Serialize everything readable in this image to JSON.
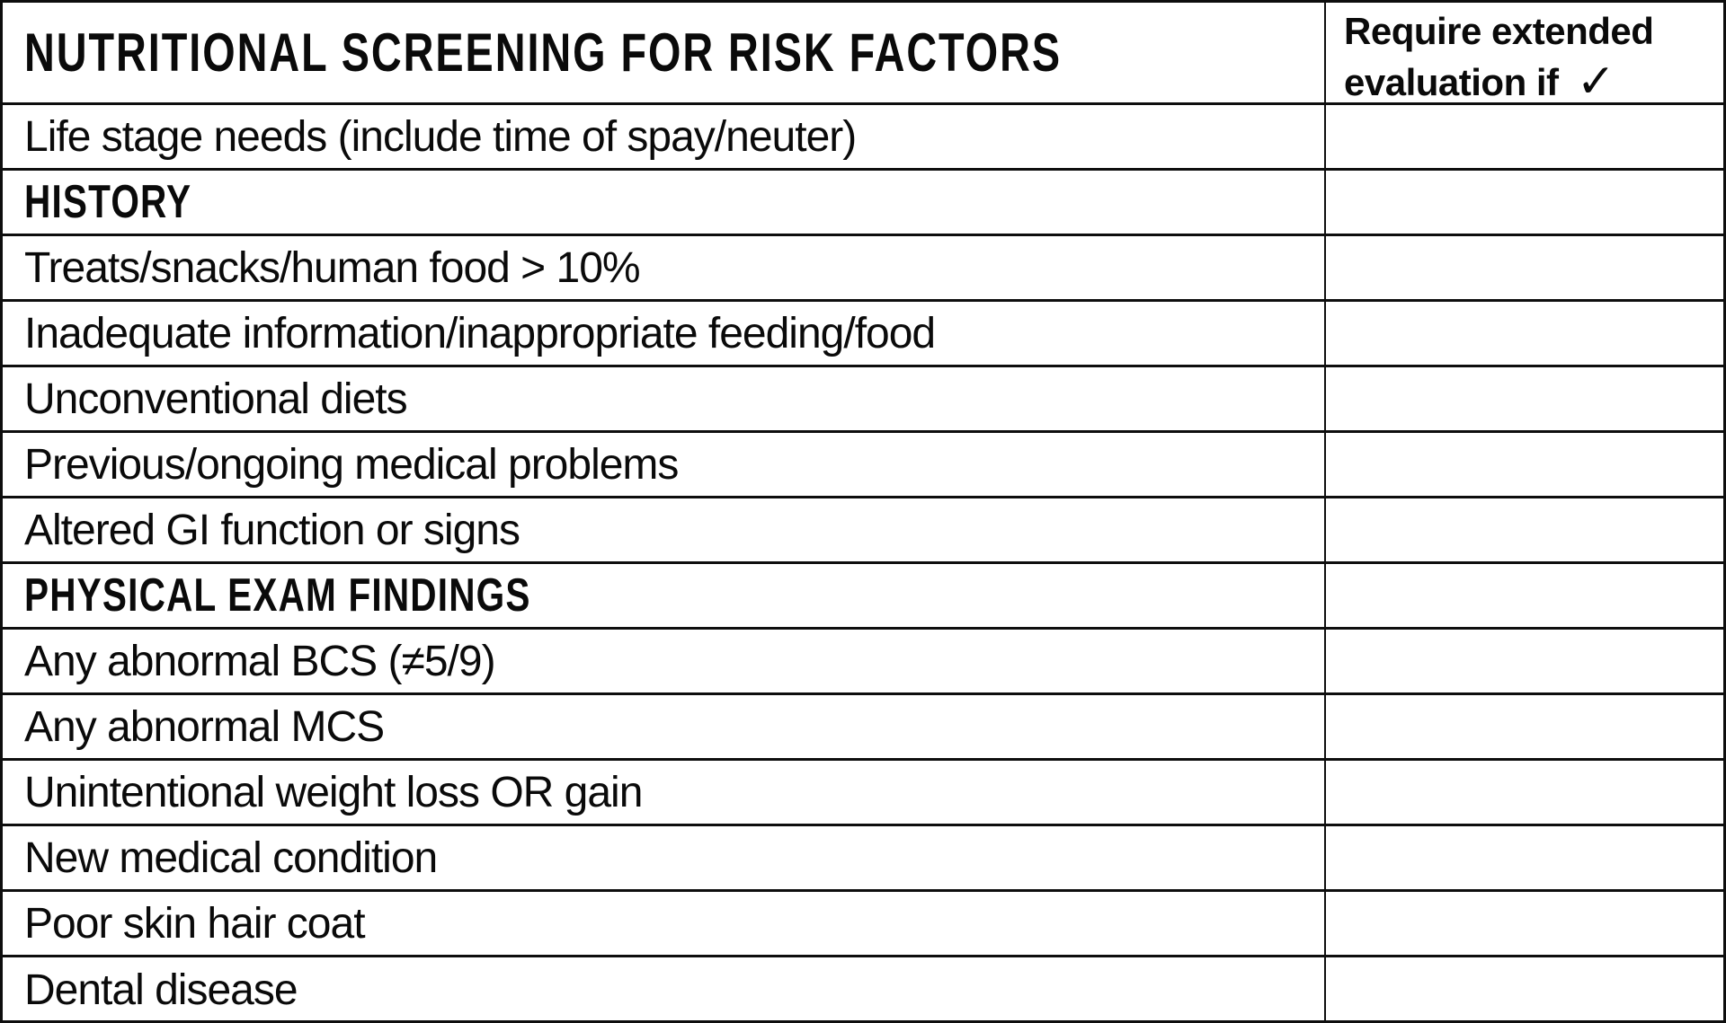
{
  "title": "NUTRITIONAL SCREENING FOR RISK FACTORS",
  "check_column": {
    "header_line1": "Require extended",
    "header_line2": "evaluation if",
    "checkmark": "✓"
  },
  "rows": [
    {
      "label": "Life stage needs (include time of spay/neuter)",
      "type": "item",
      "checked": ""
    },
    {
      "label": "HISTORY",
      "type": "section",
      "checked": ""
    },
    {
      "label": "Treats/snacks/human food > 10%",
      "type": "item",
      "checked": ""
    },
    {
      "label": "Inadequate information/inappropriate feeding/food",
      "type": "item",
      "checked": ""
    },
    {
      "label": "Unconventional diets",
      "type": "item",
      "checked": ""
    },
    {
      "label": "Previous/ongoing medical problems",
      "type": "item",
      "checked": ""
    },
    {
      "label": "Altered GI function or signs",
      "type": "item",
      "checked": ""
    },
    {
      "label": "PHYSICAL EXAM FINDINGS",
      "type": "section",
      "checked": ""
    },
    {
      "label": "Any abnormal BCS (≠5/9)",
      "type": "item",
      "checked": ""
    },
    {
      "label": "Any abnormal MCS",
      "type": "item",
      "checked": ""
    },
    {
      "label": "Unintentional weight loss OR gain",
      "type": "item",
      "checked": ""
    },
    {
      "label": "New medical condition",
      "type": "item",
      "checked": ""
    },
    {
      "label": "Poor skin hair coat",
      "type": "item",
      "checked": ""
    },
    {
      "label": "Dental disease",
      "type": "item",
      "checked": ""
    }
  ],
  "colors": {
    "border": "#0e0e0e",
    "text": "#0a0a0a",
    "background": "#ffffff"
  }
}
